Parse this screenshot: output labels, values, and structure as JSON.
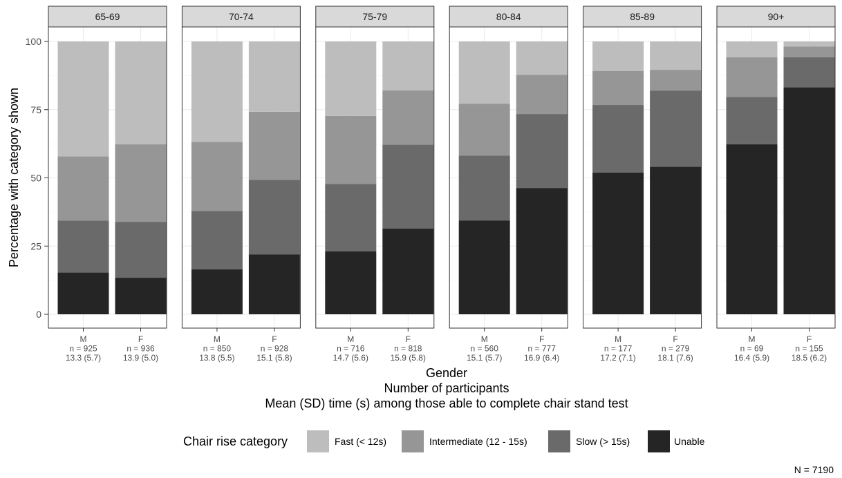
{
  "chart_data": {
    "type": "bar",
    "stacked": true,
    "facet_by": "age group",
    "ylabel": "Percentage with category shown",
    "xlabel_lines": [
      "Gender",
      "Number of participants",
      "Mean (SD) time (s) among those able to complete chair stand test"
    ],
    "ylim": [
      0,
      100
    ],
    "yticks": [
      "0",
      "25",
      "50",
      "75",
      "100"
    ],
    "grid": true,
    "legend": {
      "title": "Chair rise category",
      "position": "bottom",
      "items": [
        {
          "label": "Fast (< 12s)",
          "color": "#bdbdbd"
        },
        {
          "label": "Intermediate (12 - 15s)",
          "color": "#969696"
        },
        {
          "label": "Slow (> 15s)",
          "color": "#6a6a6a"
        },
        {
          "label": "Unable",
          "color": "#252525"
        }
      ]
    },
    "stack_order": [
      "Unable",
      "Slow (> 15s)",
      "Intermediate (12 - 15s)",
      "Fast (< 12s)"
    ],
    "caption": "N = 7190",
    "facets": [
      {
        "label": "65-69",
        "bars": [
          {
            "gender": "M",
            "n": "n = 925",
            "mean_sd": "13.3 (5.7)",
            "values": [
              15.3,
              19.0,
              23.6,
              42.1
            ]
          },
          {
            "gender": "F",
            "n": "n = 936",
            "mean_sd": "13.9 (5.0)",
            "values": [
              13.4,
              20.5,
              28.4,
              37.7
            ]
          }
        ]
      },
      {
        "label": "70-74",
        "bars": [
          {
            "gender": "M",
            "n": "n = 850",
            "mean_sd": "13.8 (5.5)",
            "values": [
              16.5,
              21.4,
              25.3,
              36.8
            ]
          },
          {
            "gender": "F",
            "n": "n = 928",
            "mean_sd": "15.1 (5.8)",
            "values": [
              21.9,
              27.4,
              24.9,
              25.8
            ]
          }
        ]
      },
      {
        "label": "75-79",
        "bars": [
          {
            "gender": "M",
            "n": "n = 716",
            "mean_sd": "14.7 (5.6)",
            "values": [
              23.1,
              24.7,
              24.9,
              27.3
            ]
          },
          {
            "gender": "F",
            "n": "n = 818",
            "mean_sd": "15.9 (5.8)",
            "values": [
              31.4,
              30.8,
              19.9,
              17.9
            ]
          }
        ]
      },
      {
        "label": "80-84",
        "bars": [
          {
            "gender": "M",
            "n": "n = 560",
            "mean_sd": "15.1 (5.7)",
            "values": [
              34.4,
              23.7,
              19.1,
              22.8
            ]
          },
          {
            "gender": "F",
            "n": "n = 777",
            "mean_sd": "16.9 (6.4)",
            "values": [
              46.3,
              27.1,
              14.4,
              12.2
            ]
          }
        ]
      },
      {
        "label": "85-89",
        "bars": [
          {
            "gender": "M",
            "n": "n = 177",
            "mean_sd": "17.2 (7.1)",
            "values": [
              51.9,
              24.8,
              12.5,
              10.8
            ]
          },
          {
            "gender": "F",
            "n": "n = 279",
            "mean_sd": "18.1 (7.6)",
            "values": [
              54.1,
              27.9,
              7.6,
              10.4
            ]
          }
        ]
      },
      {
        "label": "90+",
        "bars": [
          {
            "gender": "M",
            "n": "n = 69",
            "mean_sd": "16.4 (5.9)",
            "values": [
              62.3,
              17.4,
              14.5,
              5.8
            ]
          },
          {
            "gender": "F",
            "n": "n = 155",
            "mean_sd": "18.5 (6.2)",
            "values": [
              83.2,
              11.0,
              3.9,
              1.9
            ]
          }
        ]
      }
    ]
  }
}
